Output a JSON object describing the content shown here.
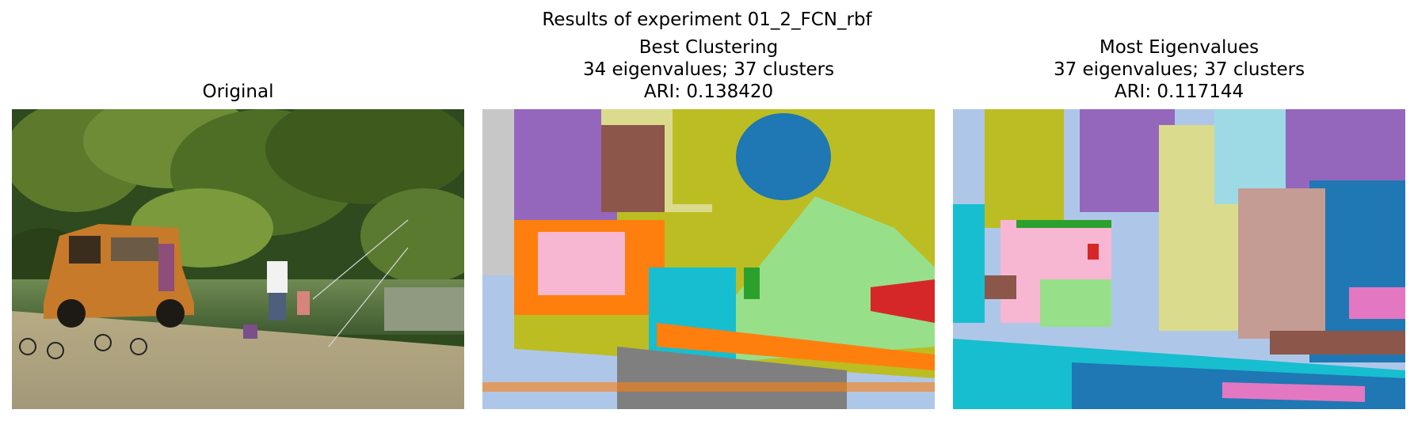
{
  "figure": {
    "suptitle": "Results of experiment 01_2_FCN_rbf"
  },
  "panels": [
    {
      "title_lines": [
        "Original"
      ],
      "image_description_icon": "photo-riverbank-orange-car-fishing"
    },
    {
      "title_lines": [
        "Best Clustering",
        "34 eigenvalues; 37 clusters",
        "ARI: 0.138420"
      ],
      "image_description_icon": "segmentation-map"
    },
    {
      "title_lines": [
        "Most Eigenvalues",
        "37 eigenvalues; 37 clusters",
        "ARI: 0.117144"
      ],
      "image_description_icon": "segmentation-map"
    }
  ],
  "colors": {
    "tab_blue": "#1f77b4",
    "tab_orange": "#ff7f0e",
    "tab_green": "#2ca02c",
    "tab_red": "#d62728",
    "tab_purple": "#9467bd",
    "tab_olive": "#bcbd22",
    "tab_cyan": "#17becf",
    "tab_pink": "#e377c2",
    "tab_gray": "#7f7f7f",
    "light_blue": "#aec7e8",
    "light_green": "#98df8a",
    "light_pink": "#f7b6d2",
    "light_olive": "#dbdb8d",
    "light_cyan": "#9edae5",
    "light_gray": "#c7c7c7",
    "brown": "#8c564b",
    "light_brown": "#c49c94"
  }
}
